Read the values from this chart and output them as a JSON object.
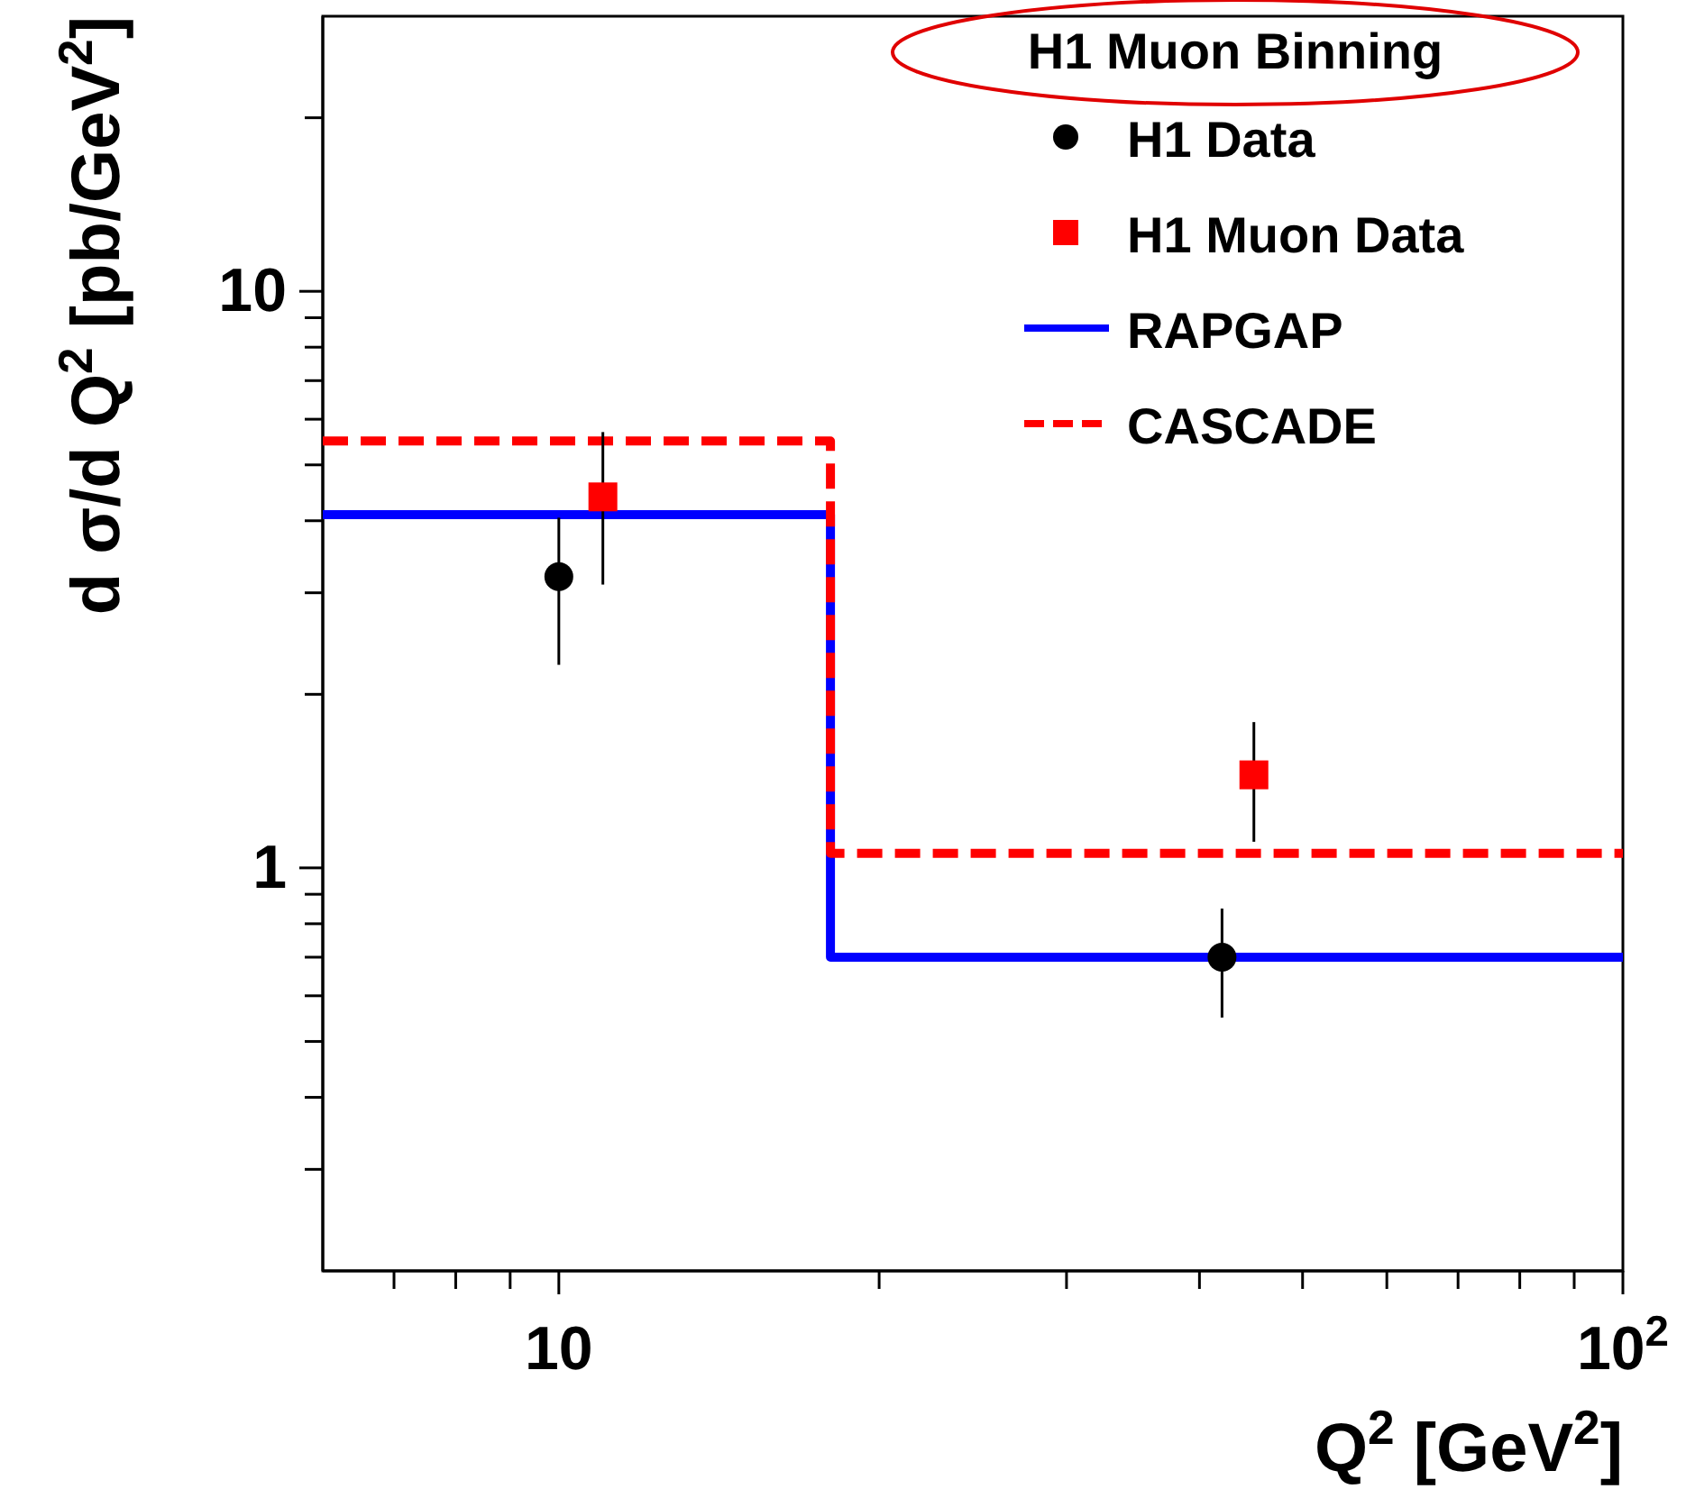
{
  "chart_data": {
    "type": "scatter",
    "xlabel": "Q$^{2}$   [GeV$^{2}$]",
    "ylabel": "d σ/d Q$^{2}$   [pb/GeV$^{2}$]",
    "legend_title": "H1 Muon Binning",
    "log": "xy",
    "xlim": [
      6,
      100
    ],
    "ylim": [
      0.2,
      30
    ],
    "xticks": [
      {
        "value": 7,
        "label": null
      },
      {
        "value": 8,
        "label": null
      },
      {
        "value": 9,
        "label": null
      },
      10,
      {
        "value": 20,
        "label": null
      },
      {
        "value": 30,
        "label": null
      },
      {
        "value": 40,
        "label": null
      },
      {
        "value": 50,
        "label": null
      },
      {
        "value": 60,
        "label": null
      },
      {
        "value": 70,
        "label": null
      },
      {
        "value": 80,
        "label": null
      },
      {
        "value": 90,
        "label": null
      },
      {
        "value": 100,
        "label": "10$^{2}$"
      }
    ],
    "yticks": [
      {
        "value": 0.3,
        "label": null
      },
      {
        "value": 0.4,
        "label": null
      },
      {
        "value": 0.5,
        "label": null
      },
      {
        "value": 0.6,
        "label": null
      },
      {
        "value": 0.7,
        "label": null
      },
      {
        "value": 0.8,
        "label": null
      },
      {
        "value": 0.9,
        "label": null
      },
      1,
      {
        "value": 2,
        "label": null
      },
      {
        "value": 3,
        "label": null
      },
      {
        "value": 4,
        "label": null
      },
      {
        "value": 5,
        "label": null
      },
      {
        "value": 6,
        "label": null
      },
      {
        "value": 7,
        "label": null
      },
      {
        "value": 8,
        "label": null
      },
      {
        "value": 9,
        "label": null
      },
      10,
      {
        "value": 20,
        "label": null
      }
    ],
    "grid": false,
    "legend": "top right",
    "series": [
      {
        "name": "H1 Data",
        "marker": "circle",
        "color": "#000000",
        "x": [
          10,
          42
        ],
        "values": [
          3.2,
          0.7
        ],
        "errors": [
          [
            2.25,
            4.05
          ],
          [
            0.55,
            0.85
          ]
        ]
      },
      {
        "name": "H1 Muon Data",
        "marker": "square",
        "color": "#ff0000",
        "x": [
          11,
          45
        ],
        "values": [
          4.4,
          1.45
        ],
        "errors": [
          [
            3.1,
            5.7
          ],
          [
            1.11,
            1.79
          ]
        ]
      },
      {
        "name": "RAPGAP",
        "type": "step",
        "line_style": "solid",
        "color": "#0000ff",
        "x": [
          6,
          18,
          100
        ],
        "values": [
          4.1,
          0.7,
          0.7
        ]
      },
      {
        "name": "CASCADE",
        "type": "step",
        "line_style": "dashed",
        "color": "#ff0000",
        "x": [
          6,
          18,
          100
        ],
        "values": [
          5.5,
          1.06,
          1.06
        ]
      }
    ]
  }
}
